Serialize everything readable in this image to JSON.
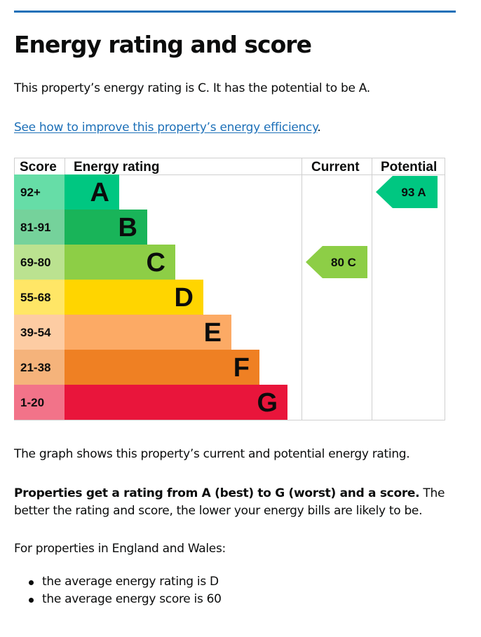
{
  "page": {
    "title": "Energy rating and score",
    "intro": "This property’s energy rating is C. It has the potential to be A.",
    "improve_link": "See how to improve this property’s energy efficiency",
    "improve_link_suffix": ".",
    "graph_explainer": "The graph shows this property’s current and potential energy rating.",
    "rating_explainer_bold": "Properties get a rating from A (best) to G (worst) and a score.",
    "rating_explainer_rest": " The better the rating and score, the lower your energy bills are likely to be.",
    "region_intro": "For properties in England and Wales:",
    "bullets": [
      "the average energy rating is D",
      "the average energy score is 60"
    ],
    "accent_color": "#1d70b8"
  },
  "chart_data": {
    "type": "table",
    "headers": {
      "score": "Score",
      "rating": "Energy rating",
      "current": "Current",
      "potential": "Potential"
    },
    "bands": [
      {
        "letter": "A",
        "score": "92+",
        "color": "#00c781",
        "score_bg": "#66dda7"
      },
      {
        "letter": "B",
        "score": "81-91",
        "color": "#19b459",
        "score_bg": "#75d29b"
      },
      {
        "letter": "C",
        "score": "69-80",
        "color": "#8dce46",
        "score_bg": "#bbe290"
      },
      {
        "letter": "D",
        "score": "55-68",
        "color": "#ffd500",
        "score_bg": "#ffe666"
      },
      {
        "letter": "E",
        "score": "39-54",
        "color": "#fcaa65",
        "score_bg": "#fdcca3"
      },
      {
        "letter": "F",
        "score": "21-38",
        "color": "#ef8023",
        "score_bg": "#f5b37b"
      },
      {
        "letter": "G",
        "score": "1-20",
        "color": "#e9153b",
        "score_bg": "#f27389"
      }
    ],
    "current": {
      "score": 80,
      "band": "C",
      "label": "80 C"
    },
    "potential": {
      "score": 93,
      "band": "A",
      "label": "93 A"
    }
  }
}
